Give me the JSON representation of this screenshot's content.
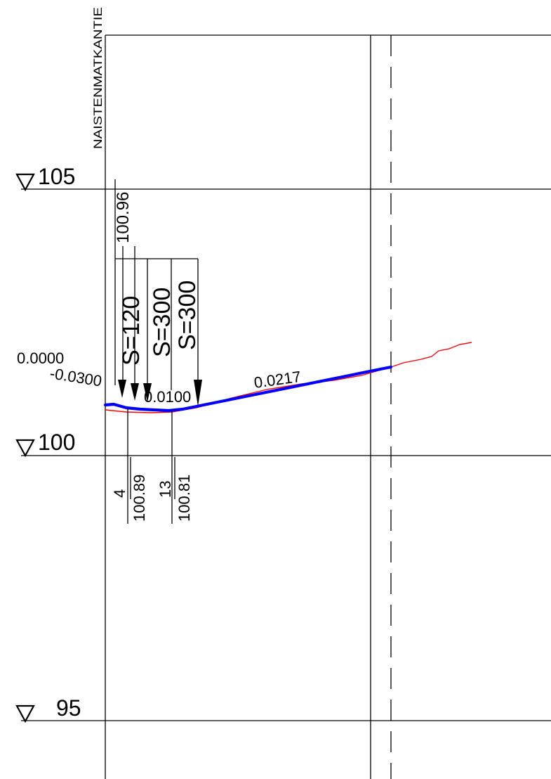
{
  "drawing": {
    "side_label": "NAISTENMATKANTIE",
    "levels": [
      {
        "label": "105",
        "value": 105
      },
      {
        "label": "100",
        "value": 100
      },
      {
        "label": "95",
        "value": 95
      }
    ],
    "grades": {
      "start": "0.0000",
      "down": "-0.0300",
      "mid": "0.0100",
      "up": "0.0217"
    },
    "elevation_top": "100.96",
    "curves": [
      "S=120",
      "S=300",
      "S=300"
    ],
    "bottom_labels": [
      {
        "station": "4",
        "elevation": "100.89"
      },
      {
        "station": "13",
        "elevation": "100.81"
      }
    ],
    "colors": {
      "frame": "#000000",
      "design_line": "#0000ff",
      "terrain_line": "#ff0000"
    }
  }
}
